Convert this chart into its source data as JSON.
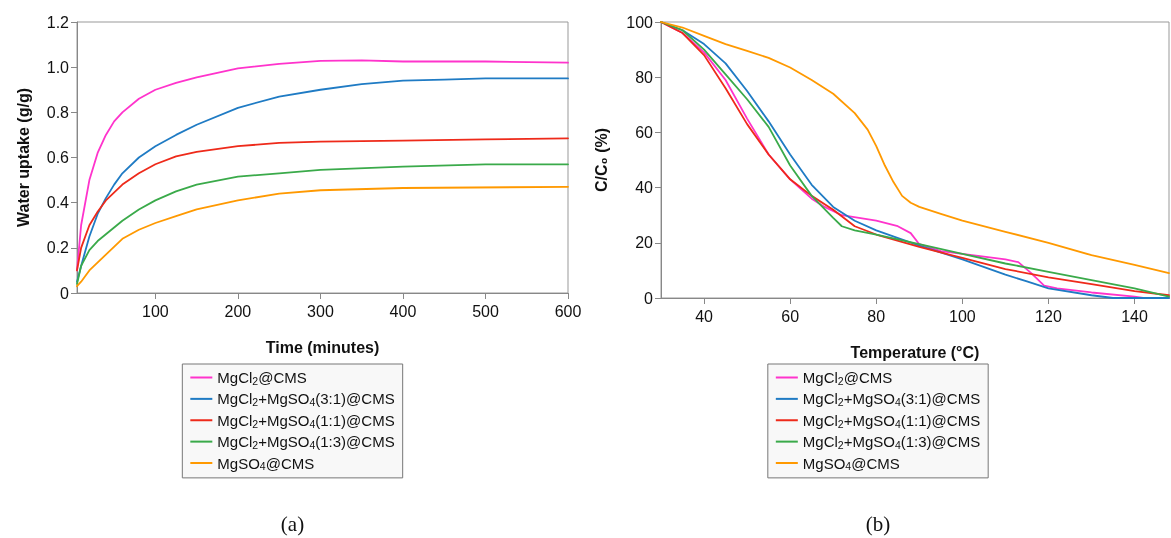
{
  "chart_data": [
    {
      "type": "line",
      "xlabel": "Time (minutes)",
      "ylabel": "Water uptake (g/g)",
      "xlim": [
        5,
        600
      ],
      "xticks": [
        100,
        200,
        300,
        400,
        500,
        600
      ],
      "ylim": [
        0,
        1.2
      ],
      "yticks": [
        0,
        0.2,
        0.4,
        0.6,
        0.8,
        {
          "value": 1,
          "label": "1.0"
        },
        1.2
      ],
      "grid": false,
      "legend": "bottom",
      "marker": "none",
      "line_style": "solid",
      "annotations": [
        "(a)"
      ],
      "series": [
        {
          "name": "MgCl$_{2}$@CMS",
          "color": "#ff33cc",
          "x": [
            5,
            10,
            20,
            30,
            40,
            50,
            60,
            80,
            100,
            125,
            150,
            175,
            200,
            250,
            300,
            350,
            400,
            500,
            600
          ],
          "values": [
            0.1,
            0.3,
            0.5,
            0.62,
            0.7,
            0.76,
            0.8,
            0.86,
            0.9,
            0.93,
            0.955,
            0.975,
            0.995,
            1.015,
            1.028,
            1.03,
            1.025,
            1.025,
            1.02
          ]
        },
        {
          "name": "MgCl$_{2}$+MgSO$_{4}$(3:1)@CMS",
          "color": "#1f7bc4",
          "x": [
            5,
            10,
            20,
            30,
            40,
            50,
            60,
            80,
            100,
            125,
            150,
            200,
            250,
            300,
            350,
            400,
            450,
            500,
            600
          ],
          "values": [
            0.05,
            0.12,
            0.25,
            0.35,
            0.42,
            0.48,
            0.53,
            0.6,
            0.65,
            0.7,
            0.745,
            0.82,
            0.87,
            0.9,
            0.925,
            0.94,
            0.945,
            0.95,
            0.95
          ]
        },
        {
          "name": "MgCl$_{2}$+MgSO$_{4}$(1:1)@CMS",
          "color": "#ee2a1a",
          "x": [
            5,
            10,
            20,
            30,
            40,
            60,
            80,
            100,
            125,
            150,
            200,
            250,
            300,
            400,
            500,
            600
          ],
          "values": [
            0.1,
            0.2,
            0.3,
            0.36,
            0.41,
            0.48,
            0.53,
            0.57,
            0.605,
            0.625,
            0.65,
            0.665,
            0.67,
            0.675,
            0.68,
            0.685
          ]
        },
        {
          "name": "MgCl$_{2}$+MgSO$_{4}$(1:3)@CMS",
          "color": "#3aaa4a",
          "x": [
            5,
            10,
            20,
            30,
            40,
            60,
            80,
            100,
            125,
            150,
            200,
            250,
            300,
            400,
            500,
            600
          ],
          "values": [
            0.04,
            0.12,
            0.19,
            0.23,
            0.26,
            0.32,
            0.37,
            0.41,
            0.45,
            0.48,
            0.515,
            0.53,
            0.545,
            0.56,
            0.57,
            0.57
          ]
        },
        {
          "name": "MgSO$_{4}$@CMS",
          "color": "#ff9900",
          "x": [
            5,
            10,
            20,
            40,
            60,
            80,
            100,
            125,
            150,
            200,
            250,
            300,
            400,
            600
          ],
          "values": [
            0.03,
            0.05,
            0.1,
            0.17,
            0.24,
            0.28,
            0.31,
            0.34,
            0.37,
            0.41,
            0.44,
            0.455,
            0.465,
            0.47
          ]
        }
      ]
    },
    {
      "type": "line",
      "xlabel": "Temperature (°C)",
      "ylabel": "C/C₀ (%)",
      "xlim": [
        30,
        148
      ],
      "xticks": [
        40,
        60,
        80,
        100,
        120,
        140
      ],
      "ylim": [
        0,
        100
      ],
      "yticks": [
        0,
        20,
        40,
        60,
        80,
        100
      ],
      "grid": false,
      "legend": "bottom",
      "marker": "none",
      "line_style": "solid",
      "annotations": [
        "(b)"
      ],
      "series": [
        {
          "name": "MgCl$_{2}$@CMS",
          "color": "#ff33cc",
          "x": [
            30,
            35,
            40,
            45,
            50,
            55,
            60,
            65,
            68,
            72,
            80,
            85,
            88,
            90,
            95,
            100,
            105,
            110,
            113,
            116,
            119,
            122,
            130,
            140,
            142,
            148
          ],
          "values": [
            100,
            96,
            89,
            79,
            65,
            52,
            43,
            36,
            33,
            30,
            28,
            26,
            23.5,
            19.5,
            17,
            16,
            15,
            14,
            13,
            9,
            4.5,
            3.5,
            2,
            0.5,
            0,
            0
          ]
        },
        {
          "name": "MgCl$_{2}$+MgSO$_{4}$(3:1)@CMS",
          "color": "#1f7bc4",
          "x": [
            30,
            35,
            40,
            45,
            50,
            55,
            60,
            65,
            70,
            75,
            80,
            90,
            100,
            110,
            115,
            120,
            130,
            135,
            148
          ],
          "values": [
            100,
            97,
            92,
            85,
            75,
            64,
            52,
            41,
            33,
            28,
            24.5,
            19,
            14,
            8.5,
            6,
            3.5,
            1,
            0,
            0
          ]
        },
        {
          "name": "MgCl$_{2}$+MgSO$_{4}$(1:1)@CMS",
          "color": "#ee2a1a",
          "x": [
            30,
            35,
            40,
            45,
            50,
            55,
            60,
            65,
            70,
            75,
            80,
            90,
            100,
            110,
            120,
            130,
            140,
            148
          ],
          "values": [
            100,
            96,
            88,
            76,
            63,
            52,
            43,
            37,
            32,
            26,
            23,
            18.5,
            14.5,
            10.5,
            7.5,
            5,
            2.5,
            1
          ]
        },
        {
          "name": "MgCl$_{2}$+MgSO$_{4}$(1:3)@CMS",
          "color": "#3aaa4a",
          "x": [
            30,
            35,
            40,
            45,
            50,
            55,
            60,
            65,
            70,
            72,
            75,
            80,
            90,
            100,
            110,
            120,
            130,
            140,
            148
          ],
          "values": [
            100,
            97,
            90,
            81,
            72,
            62,
            48,
            37,
            29,
            26,
            24.5,
            23,
            19.5,
            16,
            12.5,
            9.5,
            6.5,
            3.5,
            0.5
          ]
        },
        {
          "name": "MgSO$_{4}$@CMS",
          "color": "#ff9900",
          "x": [
            30,
            35,
            40,
            45,
            50,
            55,
            60,
            65,
            70,
            75,
            78,
            80,
            82,
            84,
            86,
            88,
            90,
            95,
            100,
            110,
            120,
            130,
            140,
            148
          ],
          "values": [
            100,
            98,
            95,
            92,
            89.5,
            87,
            83.5,
            79,
            74,
            67,
            61,
            55,
            48,
            42,
            37,
            34.5,
            33,
            30.5,
            28,
            24,
            20,
            15.5,
            12,
            9
          ]
        }
      ]
    }
  ]
}
